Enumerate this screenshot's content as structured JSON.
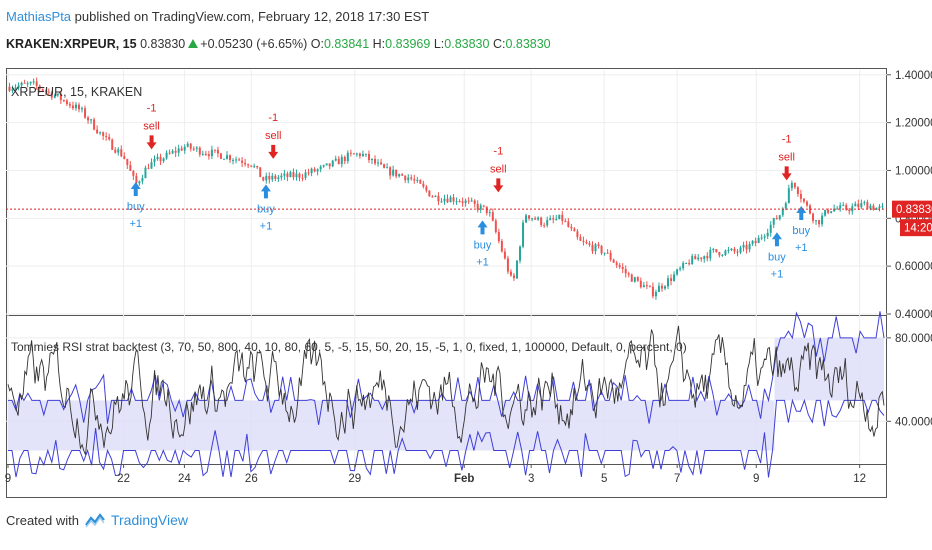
{
  "header": {
    "author": "MathiasPta",
    "published_text": " published on TradingView.com, February 12, 2018 17:30 EST",
    "symbol": "KRAKEN:XRPEUR, 15",
    "last": "0.83830",
    "change": "+0.05230 (+6.65%)",
    "o_label": "O:",
    "o_val": "0.83841",
    "h_label": "H:",
    "h_val": "0.83969",
    "l_label": "L:",
    "l_val": "0.83830",
    "c_label": "C:",
    "c_val": "0.83830"
  },
  "price_pane": {
    "legend": "XRPEUR, 15, KRAKEN",
    "current_price": "0.83830",
    "countdown": "14:20"
  },
  "rsi_pane": {
    "legend": "Tommies RSI strat backtest (3, 70, 50, 800, 40, 10, 80, 60, 5, -5, 15, 50, 20, 15, -5, 1, 0, fixed, 1, 100000, Default, 0, percent, 0)"
  },
  "footer": {
    "created_with": "Created with",
    "brand": "TradingView"
  },
  "colors": {
    "up": "#26a69a",
    "down": "#ef5350",
    "sell": "#e02424",
    "buy": "#2a8ee0",
    "band": "#3f3fd8",
    "band_fill": "#dcdcf7",
    "price_line": "#e02424",
    "osc": "#333333"
  },
  "chart_data": [
    {
      "type": "candlestick",
      "title": "XRPEUR, 15, KRAKEN",
      "y_axis_ticks": [
        "1.40000",
        "1.20000",
        "1.00000",
        "0.80000",
        "0.60000",
        "0.40000"
      ],
      "ylim": [
        0.4,
        1.42
      ],
      "x_tick_labels": [
        "9",
        "22",
        "24",
        "26",
        "29",
        "Feb",
        "3",
        "5",
        "7",
        "9",
        "12"
      ],
      "x_tick_positions": [
        0,
        9.5,
        14.5,
        20,
        28.5,
        37.5,
        43,
        49,
        55,
        61.5,
        70
      ],
      "x_range": [
        0,
        72
      ],
      "price_path": [
        [
          0,
          1.35
        ],
        [
          2,
          1.36
        ],
        [
          4,
          1.31
        ],
        [
          6,
          1.25
        ],
        [
          8,
          1.13
        ],
        [
          9.5,
          1.06
        ],
        [
          10.5,
          0.94
        ],
        [
          11.5,
          1.02
        ],
        [
          13,
          1.06
        ],
        [
          14.5,
          1.1
        ],
        [
          16,
          1.08
        ],
        [
          18,
          1.06
        ],
        [
          20,
          1.03
        ],
        [
          21,
          0.96
        ],
        [
          22,
          0.97
        ],
        [
          24,
          0.98
        ],
        [
          26,
          1.01
        ],
        [
          28,
          1.06
        ],
        [
          29,
          1.07
        ],
        [
          31,
          1.0
        ],
        [
          33,
          0.97
        ],
        [
          35,
          0.89
        ],
        [
          37,
          0.88
        ],
        [
          38.5,
          0.85
        ],
        [
          39.5,
          0.83
        ],
        [
          40.5,
          0.68
        ],
        [
          41.5,
          0.52
        ],
        [
          42.5,
          0.82
        ],
        [
          44,
          0.78
        ],
        [
          45.5,
          0.8
        ],
        [
          47,
          0.7
        ],
        [
          49,
          0.66
        ],
        [
          51,
          0.56
        ],
        [
          53,
          0.49
        ],
        [
          54.5,
          0.55
        ],
        [
          56,
          0.62
        ],
        [
          58,
          0.66
        ],
        [
          60,
          0.66
        ],
        [
          61.5,
          0.7
        ],
        [
          62.5,
          0.76
        ],
        [
          63.5,
          0.82
        ],
        [
          64.5,
          0.96
        ],
        [
          65.5,
          0.86
        ],
        [
          66.5,
          0.78
        ],
        [
          67.5,
          0.84
        ],
        [
          69,
          0.84
        ],
        [
          70.5,
          0.86
        ],
        [
          71.5,
          0.84
        ]
      ],
      "current_price": 0.8383,
      "annotations": [
        {
          "text": [
            "-1",
            "sell"
          ],
          "kind": "sell",
          "x": 11.8,
          "price": 1.08
        },
        {
          "text": [
            "-1",
            "sell"
          ],
          "kind": "sell",
          "x": 21.8,
          "price": 1.04
        },
        {
          "text": [
            "-1",
            "sell"
          ],
          "kind": "sell",
          "x": 40.3,
          "price": 0.9
        },
        {
          "text": [
            "-1",
            "sell"
          ],
          "kind": "sell",
          "x": 64.0,
          "price": 0.95
        },
        {
          "text": [
            "buy",
            "+1"
          ],
          "kind": "buy",
          "x": 10.5,
          "price": 0.96
        },
        {
          "text": [
            "buy",
            "+1"
          ],
          "kind": "buy",
          "x": 21.2,
          "price": 0.95
        },
        {
          "text": [
            "buy",
            "+1"
          ],
          "kind": "buy",
          "x": 39.0,
          "price": 0.8
        },
        {
          "text": [
            "buy",
            "+1"
          ],
          "kind": "buy",
          "x": 63.2,
          "price": 0.75
        },
        {
          "text": [
            "buy",
            "+1"
          ],
          "kind": "buy",
          "x": 65.2,
          "price": 0.86
        }
      ]
    },
    {
      "type": "line",
      "title": "Tommies RSI strat backtest (3, 70, 50, 800, 40, 10, 80, 60, 5, -5, 15, 50, 20, 15, -5, 1, 0, fixed, 1, 100000, Default, 0, percent, 0)",
      "y_axis_ticks": [
        "80.0000",
        "40.0000"
      ],
      "ylim": [
        20,
        90
      ],
      "series": [
        {
          "kind": "oscillator",
          "values_range": [
            24,
            88
          ]
        },
        {
          "kind": "upper_band",
          "segments": [
            [
              0,
              63,
              50
            ],
            [
              63,
              72,
              80
            ]
          ]
        },
        {
          "kind": "lower_band",
          "segments": [
            [
              0,
              63,
              26
            ],
            [
              63,
              72,
              50
            ]
          ]
        }
      ]
    }
  ]
}
